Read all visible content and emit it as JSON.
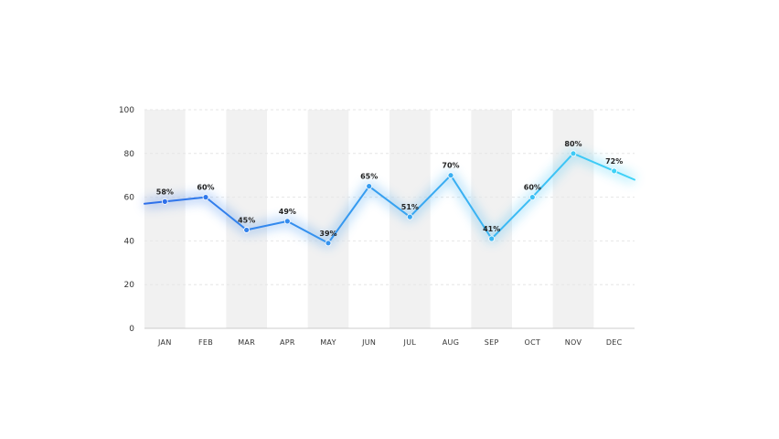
{
  "chart_data": {
    "type": "line",
    "title": "",
    "xlabel": "",
    "ylabel": "",
    "categories": [
      "JAN",
      "FEB",
      "MAR",
      "APR",
      "MAY",
      "JUN",
      "JUL",
      "AUG",
      "SEP",
      "OCT",
      "NOV",
      "DEC"
    ],
    "series": [
      {
        "values": [
          58,
          60,
          45,
          49,
          39,
          65,
          51,
          70,
          41,
          60,
          80,
          72
        ],
        "labels": [
          "58%",
          "60%",
          "45%",
          "49%",
          "39%",
          "65%",
          "51%",
          "70%",
          "41%",
          "60%",
          "80%",
          "72%"
        ]
      }
    ],
    "ylim": [
      0,
      100
    ],
    "yticks": [
      "0",
      "20",
      "40",
      "60",
      "80",
      "100"
    ],
    "grid": "horizontal dashed",
    "legend": "none",
    "colors": {
      "line_start": "#2f6fea",
      "line_end": "#3fd3f7",
      "band": "#f1f1f1",
      "axis": "#cccccc"
    }
  }
}
